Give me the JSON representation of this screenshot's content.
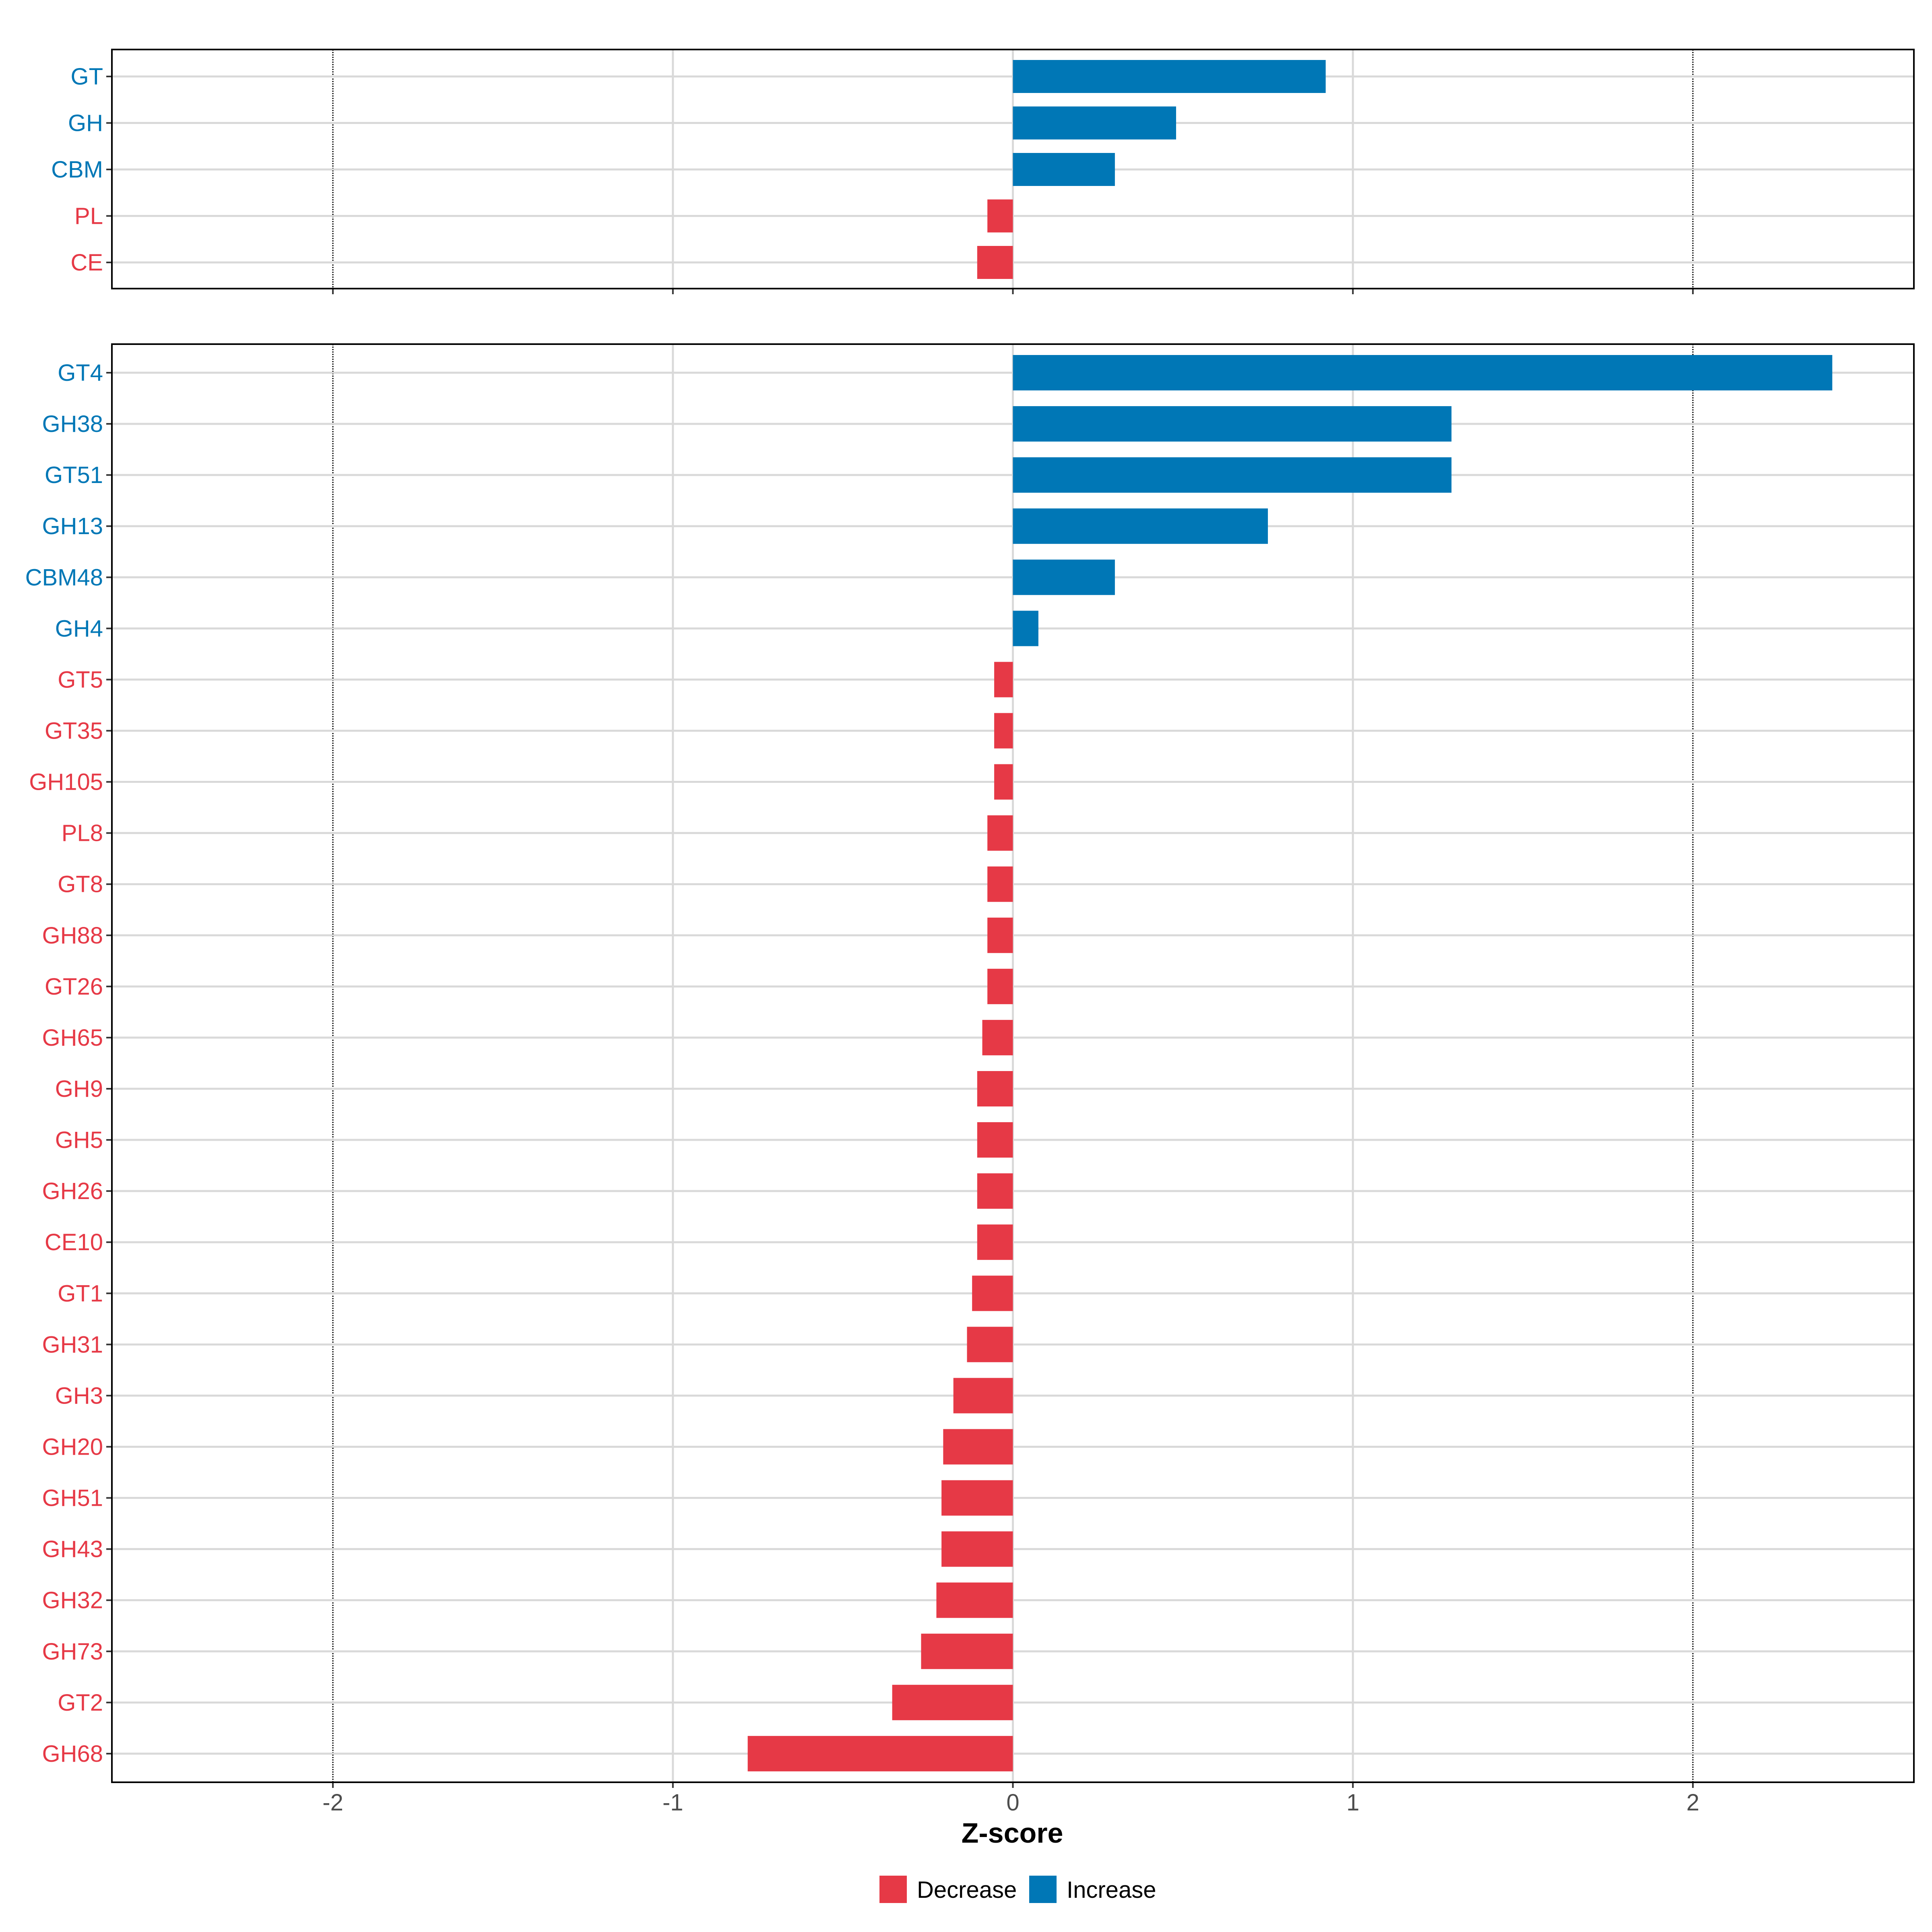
{
  "chart_data": [
    {
      "type": "bar",
      "orientation": "horizontal",
      "panel": "top",
      "categories": [
        "GT",
        "GH",
        "CBM",
        "PL",
        "CE"
      ],
      "values": [
        0.92,
        0.48,
        0.3,
        -0.075,
        -0.105
      ],
      "direction": [
        "Increase",
        "Increase",
        "Increase",
        "Decrease",
        "Decrease"
      ],
      "xlim": [
        -2.65,
        2.65
      ],
      "grid": true
    },
    {
      "type": "bar",
      "orientation": "horizontal",
      "panel": "bottom",
      "categories": [
        "GT4",
        "GH38",
        "GT51",
        "GH13",
        "CBM48",
        "GH4",
        "GT5",
        "GT35",
        "GH105",
        "PL8",
        "GT8",
        "GH88",
        "GT26",
        "GH65",
        "GH9",
        "GH5",
        "GH26",
        "CE10",
        "GT1",
        "GH31",
        "GH3",
        "GH20",
        "GH51",
        "GH43",
        "GH32",
        "GH73",
        "GT2",
        "GH68"
      ],
      "values": [
        2.41,
        1.29,
        1.29,
        0.75,
        0.3,
        0.075,
        -0.055,
        -0.055,
        -0.055,
        -0.075,
        -0.075,
        -0.075,
        -0.075,
        -0.09,
        -0.105,
        -0.105,
        -0.105,
        -0.105,
        -0.12,
        -0.135,
        -0.175,
        -0.205,
        -0.21,
        -0.21,
        -0.225,
        -0.27,
        -0.355,
        -0.78
      ],
      "direction": [
        "Increase",
        "Increase",
        "Increase",
        "Increase",
        "Increase",
        "Increase",
        "Decrease",
        "Decrease",
        "Decrease",
        "Decrease",
        "Decrease",
        "Decrease",
        "Decrease",
        "Decrease",
        "Decrease",
        "Decrease",
        "Decrease",
        "Decrease",
        "Decrease",
        "Decrease",
        "Decrease",
        "Decrease",
        "Decrease",
        "Decrease",
        "Decrease",
        "Decrease",
        "Decrease",
        "Decrease"
      ],
      "xlabel": "Z-score",
      "xticks": [
        -2,
        -1,
        0,
        1,
        2
      ],
      "xtick_labels": [
        "-2",
        "-1",
        "0",
        "1",
        "2"
      ],
      "xlim": [
        -2.65,
        2.65
      ],
      "reference_lines": [
        -2,
        2
      ],
      "grid": true
    }
  ],
  "legend": {
    "position": "bottom",
    "items": [
      {
        "label": "Decrease",
        "color": "#E63946"
      },
      {
        "label": "Increase",
        "color": "#0077B6"
      }
    ]
  },
  "colors": {
    "Decrease": "#E63946",
    "Increase": "#0077B6"
  }
}
